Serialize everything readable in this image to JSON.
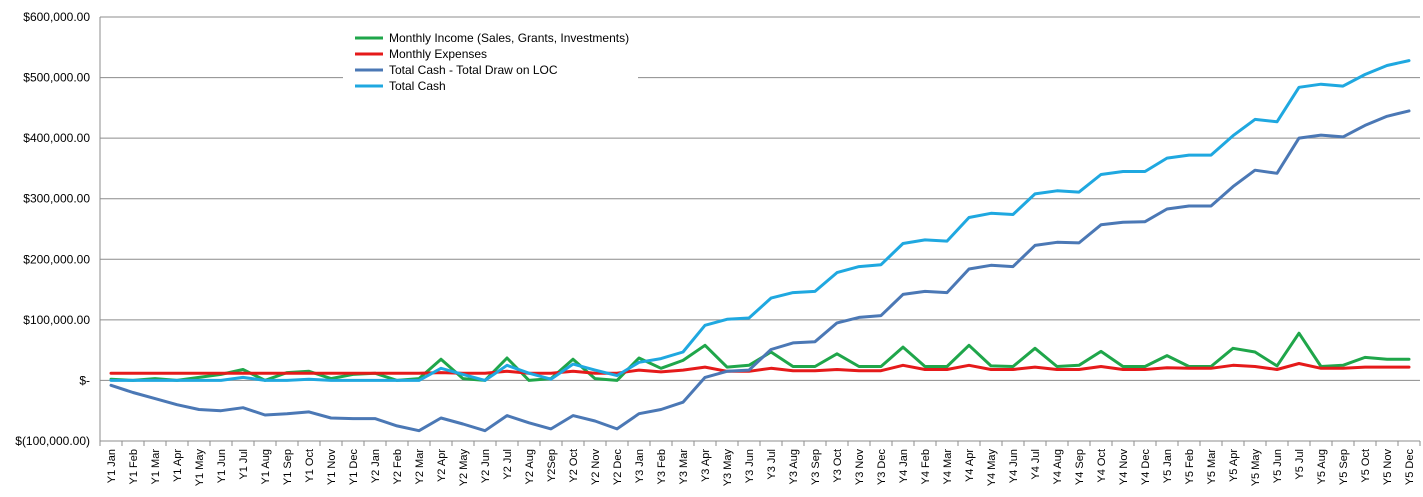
{
  "chart_data": {
    "type": "line",
    "title": "",
    "xlabel": "",
    "ylabel": "",
    "ylim": [
      -100000,
      600000
    ],
    "yticks": [
      -100000,
      0,
      100000,
      200000,
      300000,
      400000,
      500000,
      600000
    ],
    "ytick_labels": [
      "$(100,000.00)",
      "$-",
      "$100,000.00",
      "$200,000.00",
      "$300,000.00",
      "$400,000.00",
      "$500,000.00",
      "$600,000.00"
    ],
    "grid": "horizontal",
    "legend_position": "top-left",
    "categories": [
      "Y1 Jan",
      "Y1 Feb",
      "Y1 Mar",
      "Y1 Apr",
      "Y1 May",
      "Y1 Jun",
      "Y1 Jul",
      "Y1 Aug",
      "Y1 Sep",
      "Y1 Oct",
      "Y1 Nov",
      "Y1 Dec",
      "Y2 Jan",
      "Y2 Feb",
      "Y2 Mar",
      "Y2 Apr",
      "Y2 May",
      "Y2 Jun",
      "Y2 Jul",
      "Y2 Aug",
      "Y2Sep",
      "Y2 Oct",
      "Y2 Nov",
      "Y2 Dec",
      "Y3 Jan",
      "Y3 Feb",
      "Y3 Mar",
      "Y3 Apr",
      "Y3 May",
      "Y3 Jun",
      "Y3 Jul",
      "Y3 Aug",
      "Y3 Sep",
      "Y3 Oct",
      "Y3 Nov",
      "Y3 Dec",
      "Y4 Jan",
      "Y4 Feb",
      "Y4 Mar",
      "Y4 Apr",
      "Y4 May",
      "Y4 Jun",
      "Y4 Jul",
      "Y4 Aug",
      "Y4 Sep",
      "Y4 Oct",
      "Y4 Nov",
      "Y4 Dec",
      "Y5 Jan",
      "Y5 Feb",
      "Y5 Mar",
      "Y5 Apr",
      "Y5 May",
      "Y5 Jun",
      "Y5 Jul",
      "Y5 Aug",
      "Y5 Sep",
      "Y5 Oct",
      "Y5 Nov",
      "Y5 Dec"
    ],
    "series": [
      {
        "name": "Monthly Income (Sales, Grants, Investments)",
        "color": "#1fa64a",
        "values": [
          2000,
          0,
          3000,
          0,
          5000,
          10000,
          18000,
          0,
          13000,
          15000,
          3000,
          10000,
          12000,
          0,
          3000,
          35000,
          3000,
          0,
          37000,
          0,
          3000,
          35000,
          3000,
          0,
          37000,
          20000,
          33000,
          58000,
          22000,
          25000,
          47000,
          23000,
          23000,
          44000,
          23000,
          23000,
          55000,
          23000,
          23000,
          58000,
          24000,
          23000,
          53000,
          23000,
          25000,
          48000,
          23000,
          23000,
          41000,
          23000,
          23000,
          53000,
          47000,
          24000,
          78000,
          23000,
          25000,
          38000,
          35000,
          35000
        ]
      },
      {
        "name": "Monthly Expenses",
        "color": "#e51a1a",
        "values": [
          12000,
          12000,
          12000,
          12000,
          12000,
          12000,
          12000,
          12000,
          12000,
          12000,
          12000,
          12000,
          12000,
          12000,
          12000,
          13000,
          12000,
          12000,
          15000,
          12000,
          12000,
          15000,
          12000,
          12000,
          17000,
          14000,
          17000,
          22000,
          15000,
          15000,
          20000,
          16000,
          16000,
          18000,
          16000,
          16000,
          25000,
          18000,
          18000,
          25000,
          18000,
          18000,
          22000,
          18000,
          18000,
          23000,
          18000,
          18000,
          21000,
          20000,
          20000,
          25000,
          23000,
          18000,
          28000,
          20000,
          20000,
          22000,
          22000,
          22000
        ]
      },
      {
        "name": "Total Cash - Total Draw on LOC",
        "color": "#4b78b5",
        "values": [
          -8000,
          -20000,
          -30000,
          -40000,
          -48000,
          -50000,
          -45000,
          -57000,
          -55000,
          -52000,
          -62000,
          -63000,
          -63000,
          -75000,
          -83000,
          -62000,
          -72000,
          -83000,
          -58000,
          -70000,
          -80000,
          -58000,
          -67000,
          -80000,
          -55000,
          -48000,
          -36000,
          5000,
          15000,
          17000,
          51000,
          62000,
          64000,
          95000,
          104000,
          107000,
          142000,
          147000,
          145000,
          184000,
          190000,
          188000,
          223000,
          228000,
          227000,
          257000,
          261000,
          262000,
          283000,
          288000,
          288000,
          320000,
          347000,
          342000,
          400000,
          405000,
          402000,
          421000,
          436000,
          445000
        ]
      },
      {
        "name": "Total Cash",
        "color": "#1fa8e0",
        "values": [
          0,
          0,
          0,
          0,
          0,
          0,
          5000,
          0,
          0,
          2000,
          0,
          0,
          0,
          0,
          0,
          20000,
          10000,
          0,
          25000,
          12000,
          2000,
          27000,
          17000,
          8000,
          30000,
          36000,
          47000,
          91000,
          101000,
          103000,
          136000,
          145000,
          147000,
          178000,
          188000,
          191000,
          226000,
          232000,
          230000,
          269000,
          276000,
          274000,
          308000,
          313000,
          311000,
          340000,
          345000,
          345000,
          367000,
          372000,
          372000,
          404000,
          431000,
          427000,
          484000,
          489000,
          486000,
          505000,
          520000,
          528000
        ]
      }
    ]
  }
}
